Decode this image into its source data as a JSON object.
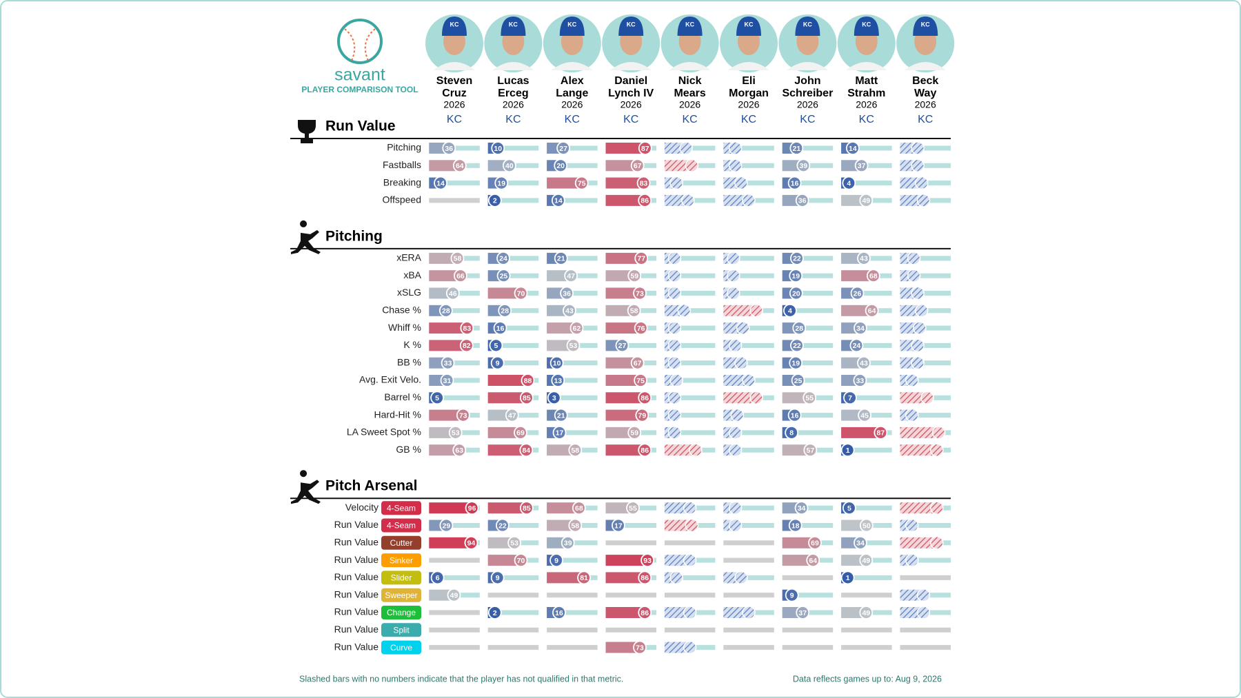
{
  "header": {
    "logo_text": "savant",
    "subtitle": "PLAYER COMPARISON TOOL"
  },
  "players": [
    {
      "first": "Steven",
      "last": "Cruz",
      "season": 2026,
      "team": "KC"
    },
    {
      "first": "Lucas",
      "last": "Erceg",
      "season": 2026,
      "team": "KC"
    },
    {
      "first": "Alex",
      "last": "Lange",
      "season": 2026,
      "team": "KC"
    },
    {
      "first": "Daniel",
      "last": "Lynch IV",
      "season": 2026,
      "team": "KC"
    },
    {
      "first": "Nick",
      "last": "Mears",
      "season": 2026,
      "team": "KC"
    },
    {
      "first": "Eli",
      "last": "Morgan",
      "season": 2026,
      "team": "KC"
    },
    {
      "first": "John",
      "last": "Schreiber",
      "season": 2026,
      "team": "KC"
    },
    {
      "first": "Matt",
      "last": "Strahm",
      "season": 2026,
      "team": "KC"
    },
    {
      "first": "Beck",
      "last": "Way",
      "season": 2026,
      "team": "KC"
    }
  ],
  "sections": [
    {
      "title": "Run Value",
      "rows": [
        {
          "label": "Pitching",
          "values": [
            36,
            10,
            27,
            87,
            {
              "value": 40,
              "hatched": true
            },
            {
              "value": 15,
              "hatched": true
            },
            21,
            14,
            {
              "value": 30,
              "hatched": true
            }
          ]
        },
        {
          "label": "Fastballs",
          "values": [
            64,
            40,
            20,
            67,
            {
              "value": 55,
              "hatched": true
            },
            {
              "value": 15,
              "hatched": true
            },
            39,
            37,
            {
              "value": 30,
              "hatched": true
            }
          ]
        },
        {
          "label": "Breaking",
          "values": [
            14,
            19,
            75,
            83,
            {
              "value": 15,
              "hatched": true
            },
            {
              "value": 30,
              "hatched": true
            },
            16,
            4,
            {
              "value": 40,
              "hatched": true
            }
          ]
        },
        {
          "label": "Offspeed",
          "values": [
            null,
            2,
            14,
            86,
            {
              "value": 45,
              "hatched": true
            },
            {
              "value": 50,
              "hatched": true
            },
            36,
            49,
            {
              "value": 45,
              "hatched": true
            }
          ]
        }
      ]
    },
    {
      "title": "Pitching",
      "rows": [
        {
          "label": "xERA",
          "values": [
            58,
            24,
            21,
            77,
            {
              "value": 10,
              "hatched": true
            },
            {
              "value": 10,
              "hatched": true
            },
            22,
            43,
            {
              "value": 20,
              "hatched": true
            }
          ]
        },
        {
          "label": "xBA",
          "values": [
            66,
            25,
            47,
            59,
            {
              "value": 10,
              "hatched": true
            },
            {
              "value": 10,
              "hatched": true
            },
            19,
            68,
            {
              "value": 20,
              "hatched": true
            }
          ]
        },
        {
          "label": "xSLG",
          "values": [
            46,
            70,
            36,
            73,
            {
              "value": 10,
              "hatched": true
            },
            {
              "value": 10,
              "hatched": true
            },
            20,
            26,
            {
              "value": 30,
              "hatched": true
            }
          ]
        },
        {
          "label": "Chase %",
          "values": [
            28,
            28,
            43,
            58,
            {
              "value": 35,
              "hatched": true
            },
            {
              "value": 70,
              "hatched": true
            },
            4,
            64,
            {
              "value": 40,
              "hatched": true
            }
          ]
        },
        {
          "label": "Whiff %",
          "values": [
            83,
            16,
            62,
            76,
            {
              "value": 10,
              "hatched": true
            },
            {
              "value": 35,
              "hatched": true
            },
            28,
            34,
            {
              "value": 35,
              "hatched": true
            }
          ]
        },
        {
          "label": "K %",
          "values": [
            82,
            5,
            53,
            27,
            {
              "value": 10,
              "hatched": true
            },
            {
              "value": 15,
              "hatched": true
            },
            22,
            24,
            {
              "value": 30,
              "hatched": true
            }
          ]
        },
        {
          "label": "BB %",
          "values": [
            33,
            9,
            10,
            67,
            {
              "value": 10,
              "hatched": true
            },
            {
              "value": 30,
              "hatched": true
            },
            19,
            43,
            {
              "value": 30,
              "hatched": true
            }
          ]
        },
        {
          "label": "Avg. Exit Velo.",
          "values": [
            31,
            88,
            13,
            75,
            {
              "value": 15,
              "hatched": true
            },
            {
              "value": 50,
              "hatched": true
            },
            25,
            33,
            {
              "value": 15,
              "hatched": true
            }
          ]
        },
        {
          "label": "Barrel %",
          "values": [
            5,
            85,
            3,
            86,
            {
              "value": 10,
              "hatched": true
            },
            {
              "value": 70,
              "hatched": true
            },
            55,
            7,
            {
              "value": 55,
              "hatched": true
            }
          ]
        },
        {
          "label": "Hard-Hit %",
          "values": [
            73,
            47,
            21,
            79,
            {
              "value": 10,
              "hatched": true
            },
            {
              "value": 20,
              "hatched": true
            },
            16,
            45,
            {
              "value": 15,
              "hatched": true
            }
          ]
        },
        {
          "label": "LA Sweet Spot %",
          "values": [
            53,
            69,
            17,
            59,
            {
              "value": 10,
              "hatched": true
            },
            {
              "value": 15,
              "hatched": true
            },
            8,
            87,
            {
              "value": 85,
              "hatched": true
            }
          ]
        },
        {
          "label": "GB %",
          "values": [
            63,
            84,
            58,
            86,
            {
              "value": 65,
              "hatched": true
            },
            {
              "value": 15,
              "hatched": true
            },
            57,
            1,
            {
              "value": 80,
              "hatched": true
            }
          ]
        }
      ]
    },
    {
      "title": "Pitch Arsenal",
      "rows": [
        {
          "label": "Velocity",
          "pitch": "4-Seam",
          "pitch_color": "#d22d49",
          "values": [
            96,
            85,
            68,
            55,
            {
              "value": 50,
              "hatched": true
            },
            {
              "value": 15,
              "hatched": true
            },
            34,
            5,
            {
              "value": 80,
              "hatched": true
            }
          ]
        },
        {
          "label": "Run Value",
          "pitch": "4-Seam",
          "pitch_color": "#d22d49",
          "values": [
            29,
            22,
            58,
            17,
            {
              "value": 55,
              "hatched": true
            },
            {
              "value": 15,
              "hatched": true
            },
            18,
            50,
            {
              "value": 15,
              "hatched": true
            }
          ]
        },
        {
          "label": "Run Value",
          "pitch": "Cutter",
          "pitch_color": "#933f2c",
          "values": [
            94,
            53,
            39,
            null,
            null,
            null,
            69,
            34,
            {
              "value": 80,
              "hatched": true
            }
          ]
        },
        {
          "label": "Run Value",
          "pitch": "Sinker",
          "pitch_color": "#fe9d00",
          "values": [
            null,
            70,
            9,
            93,
            {
              "value": 50,
              "hatched": true
            },
            null,
            64,
            49,
            {
              "value": 15,
              "hatched": true
            }
          ]
        },
        {
          "label": "Run Value",
          "pitch": "Slider",
          "pitch_color": "#c3bd0e",
          "values": [
            6,
            9,
            81,
            86,
            {
              "value": 15,
              "hatched": true
            },
            {
              "value": 30,
              "hatched": true
            },
            null,
            1,
            null
          ]
        },
        {
          "label": "Run Value",
          "pitch": "Sweeper",
          "pitch_color": "#ddb33a",
          "values": [
            49,
            null,
            null,
            null,
            null,
            null,
            9,
            null,
            {
              "value": 45,
              "hatched": true
            }
          ]
        },
        {
          "label": "Run Value",
          "pitch": "Change",
          "pitch_color": "#1dbe3a",
          "values": [
            null,
            2,
            16,
            86,
            {
              "value": 50,
              "hatched": true
            },
            {
              "value": 50,
              "hatched": true
            },
            37,
            49,
            {
              "value": 45,
              "hatched": true
            }
          ]
        },
        {
          "label": "Run Value",
          "pitch": "Split",
          "pitch_color": "#3bacac",
          "values": [
            null,
            null,
            null,
            null,
            null,
            null,
            null,
            null,
            null
          ]
        },
        {
          "label": "Run Value",
          "pitch": "Curve",
          "pitch_color": "#00d1ed",
          "values": [
            null,
            null,
            null,
            73,
            {
              "value": 50,
              "hatched": true
            },
            null,
            null,
            null,
            null
          ]
        }
      ]
    }
  ],
  "footer": {
    "note": "Slashed bars with no numbers indicate that the player has not qualified in that metric.",
    "updated": "Data reflects games up to: Aug 9, 2026"
  }
}
